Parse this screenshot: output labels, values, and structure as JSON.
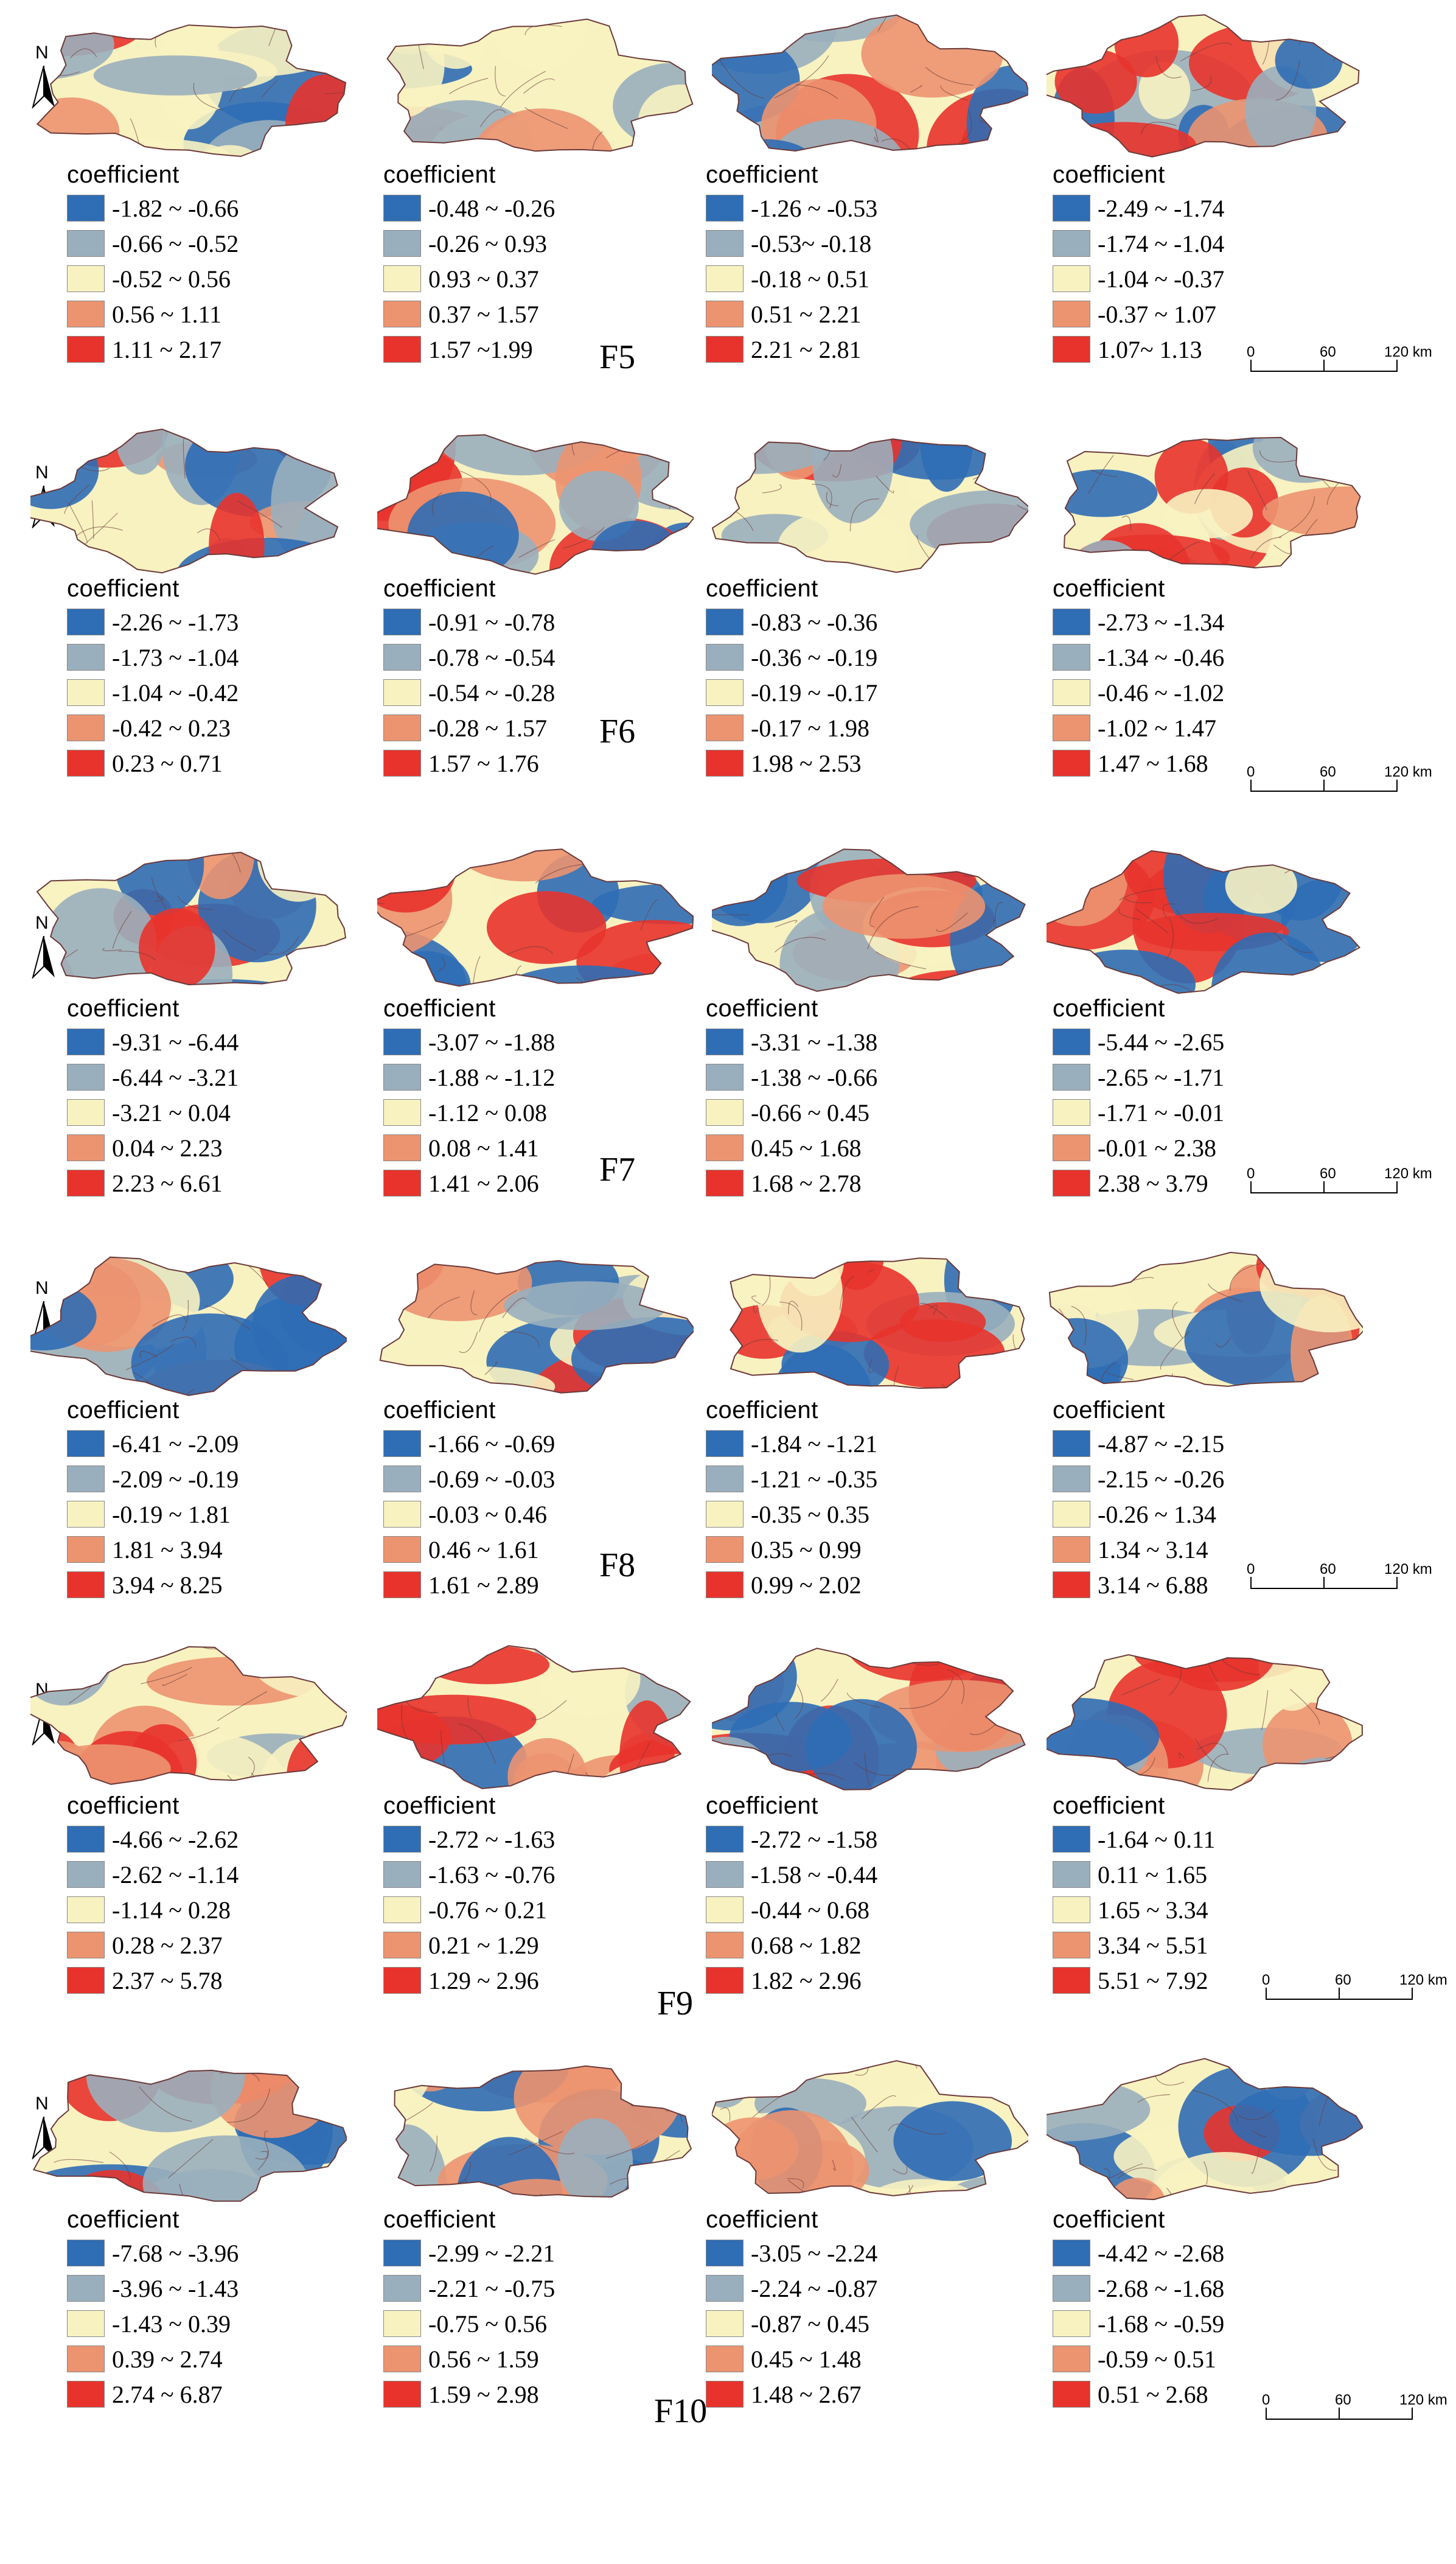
{
  "legend_title": "coefficient",
  "north_label": "N",
  "scale_bar": {
    "labels": [
      "0",
      "60",
      "120 km"
    ]
  },
  "colors": {
    "class1": "#2f6db5",
    "class2": "#9aafbd",
    "class3": "#f8f2c1",
    "class4": "#ec9470",
    "class5": "#e8332c",
    "border": "#6b3a3a"
  },
  "rows": [
    {
      "label": "F5",
      "panels": [
        {
          "classes": [
            "-1.82 ~ -0.66",
            "-0.66 ~ -0.52",
            "-0.52 ~ 0.56",
            "0.56 ~ 1.11",
            "1.11 ~ 2.17"
          ]
        },
        {
          "classes": [
            "-0.48 ~ -0.26",
            "-0.26 ~ 0.93",
            "0.93 ~ 0.37",
            "0.37 ~ 1.57",
            "1.57 ~1.99"
          ]
        },
        {
          "classes": [
            "-1.26 ~ -0.53",
            "-0.53~ -0.18",
            "-0.18 ~ 0.51",
            "0.51 ~ 2.21",
            "2.21 ~ 2.81"
          ]
        },
        {
          "classes": [
            "-2.49 ~ -1.74",
            "-1.74 ~ -1.04",
            "-1.04 ~ -0.37",
            "-0.37 ~ 1.07",
            "1.07~ 1.13"
          ]
        }
      ]
    },
    {
      "label": "F6",
      "panels": [
        {
          "classes": [
            "-2.26 ~ -1.73",
            "-1.73 ~ -1.04",
            "-1.04 ~ -0.42",
            "-0.42 ~ 0.23",
            "0.23 ~ 0.71"
          ]
        },
        {
          "classes": [
            "-0.91 ~ -0.78",
            "-0.78 ~ -0.54",
            "-0.54 ~ -0.28",
            "-0.28 ~ 1.57",
            "1.57 ~ 1.76"
          ]
        },
        {
          "classes": [
            "-0.83 ~ -0.36",
            "-0.36 ~ -0.19",
            "-0.19 ~ -0.17",
            "-0.17 ~ 1.98",
            "1.98 ~ 2.53"
          ]
        },
        {
          "classes": [
            "-2.73 ~ -1.34",
            "-1.34 ~ -0.46",
            "-0.46 ~ -1.02",
            "-1.02 ~ 1.47",
            "1.47 ~ 1.68"
          ]
        }
      ]
    },
    {
      "label": "F7",
      "panels": [
        {
          "classes": [
            "-9.31 ~ -6.44",
            "-6.44 ~ -3.21",
            "-3.21 ~ 0.04",
            "0.04 ~ 2.23",
            "2.23 ~ 6.61"
          ]
        },
        {
          "classes": [
            "-3.07 ~ -1.88",
            "-1.88 ~ -1.12",
            "-1.12 ~ 0.08",
            "0.08 ~ 1.41",
            "1.41 ~ 2.06"
          ]
        },
        {
          "classes": [
            "-3.31 ~ -1.38",
            "-1.38 ~ -0.66",
            "-0.66 ~ 0.45",
            "0.45 ~ 1.68",
            "1.68 ~ 2.78"
          ]
        },
        {
          "classes": [
            "-5.44 ~ -2.65",
            "-2.65 ~ -1.71",
            "-1.71 ~ -0.01",
            "-0.01 ~ 2.38",
            "2.38 ~ 3.79"
          ]
        }
      ]
    },
    {
      "label": "F8",
      "panels": [
        {
          "classes": [
            "-6.41 ~ -2.09",
            "-2.09 ~ -0.19",
            "-0.19 ~ 1.81",
            "1.81 ~ 3.94",
            "3.94 ~ 8.25"
          ]
        },
        {
          "classes": [
            "-1.66 ~ -0.69",
            "-0.69 ~ -0.03",
            "-0.03 ~ 0.46",
            "0.46 ~ 1.61",
            "1.61 ~ 2.89"
          ]
        },
        {
          "classes": [
            "-1.84 ~ -1.21",
            "-1.21 ~ -0.35",
            "-0.35 ~ 0.35",
            "0.35 ~ 0.99",
            "0.99 ~ 2.02"
          ]
        },
        {
          "classes": [
            "-4.87 ~ -2.15",
            "-2.15 ~ -0.26",
            "-0.26 ~ 1.34",
            "1.34 ~ 3.14",
            "3.14 ~ 6.88"
          ]
        }
      ]
    },
    {
      "label": "F9",
      "panels": [
        {
          "classes": [
            "-4.66 ~ -2.62",
            "-2.62 ~ -1.14",
            "-1.14 ~ 0.28",
            "0.28 ~ 2.37",
            "2.37 ~ 5.78"
          ]
        },
        {
          "classes": [
            "-2.72 ~ -1.63",
            "-1.63 ~ -0.76",
            "-0.76 ~ 0.21",
            "0.21 ~ 1.29",
            "1.29 ~ 2.96"
          ]
        },
        {
          "classes": [
            "-2.72 ~ -1.58",
            "-1.58 ~ -0.44",
            "-0.44 ~ 0.68",
            "0.68 ~ 1.82",
            "1.82 ~ 2.96"
          ]
        },
        {
          "classes": [
            "-1.64 ~ 0.11",
            "0.11 ~ 1.65",
            "1.65 ~ 3.34",
            "3.34 ~ 5.51",
            "5.51 ~ 7.92"
          ]
        }
      ]
    },
    {
      "label": "F10",
      "panels": [
        {
          "classes": [
            "-7.68 ~ -3.96",
            "-3.96 ~ -1.43",
            "-1.43 ~ 0.39",
            "0.39 ~ 2.74",
            "2.74 ~ 6.87"
          ]
        },
        {
          "classes": [
            "-2.99 ~ -2.21",
            "-2.21 ~ -0.75",
            "-0.75 ~ 0.56",
            "0.56 ~ 1.59",
            "1.59 ~ 2.98"
          ]
        },
        {
          "classes": [
            "-3.05 ~ -2.24",
            "-2.24 ~ -0.87",
            "-0.87 ~ 0.45",
            "0.45 ~ 1.48",
            "1.48 ~ 2.67"
          ]
        },
        {
          "classes": [
            "-4.42 ~ -2.68",
            "-2.68 ~ -1.68",
            "-1.68 ~ -0.59",
            "-0.59 ~ 0.51",
            "0.51 ~ 2.68"
          ]
        }
      ]
    }
  ]
}
